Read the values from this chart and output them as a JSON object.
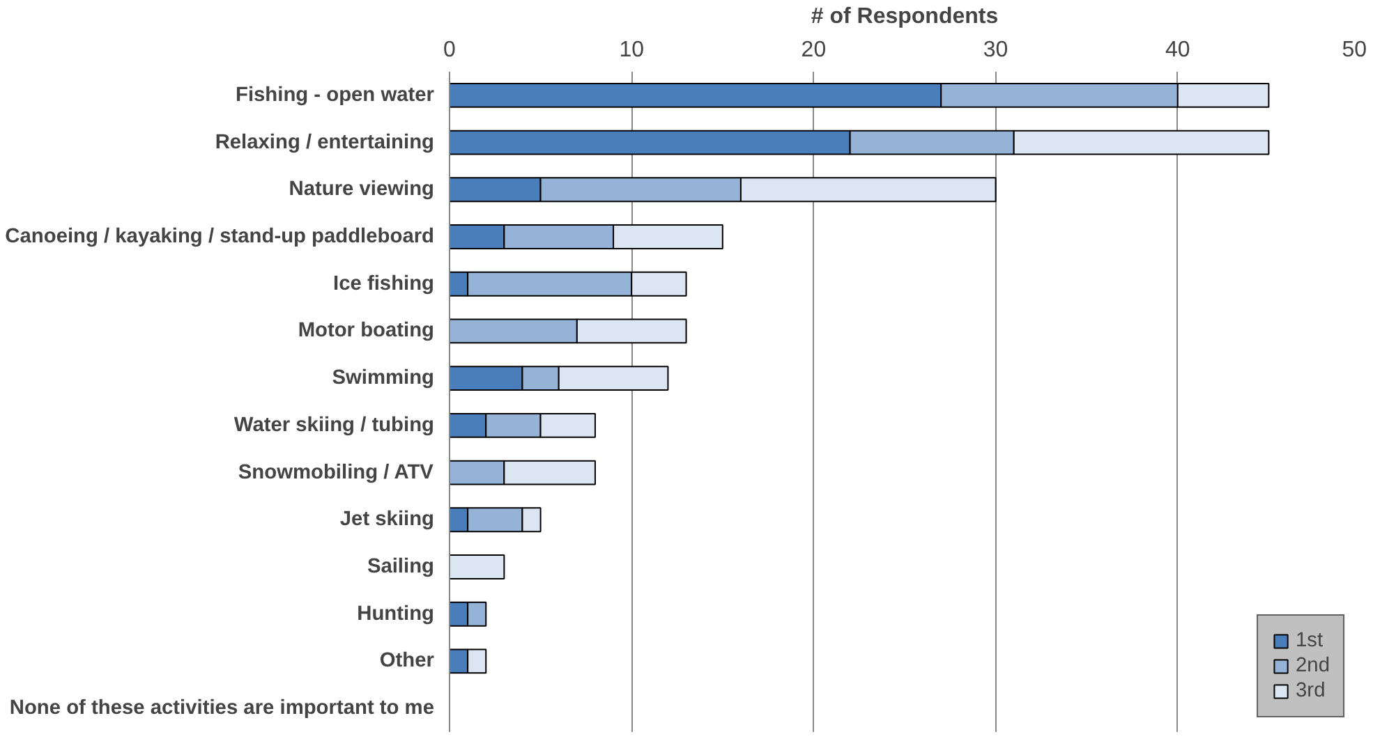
{
  "chart_data": {
    "type": "bar",
    "orientation": "horizontal",
    "stacked": true,
    "xlabel": "# of Respondents",
    "categories": [
      "Fishing - open water",
      "Relaxing / entertaining",
      "Nature viewing",
      "Canoeing / kayaking / stand-up paddleboard",
      "Ice fishing",
      "Motor boating",
      "Swimming",
      "Water skiing / tubing",
      "Snowmobiling / ATV",
      "Jet skiing",
      "Sailing",
      "Hunting",
      "Other",
      "None of these activities are important to me"
    ],
    "series": [
      {
        "name": "1st",
        "color": "#4a7ebb",
        "values": [
          27,
          22,
          5,
          3,
          1,
          0,
          4,
          2,
          0,
          1,
          0,
          1,
          1,
          0
        ]
      },
      {
        "name": "2nd",
        "color": "#95b3d7",
        "values": [
          13,
          9,
          11,
          6,
          9,
          7,
          2,
          3,
          3,
          3,
          0,
          1,
          0,
          0
        ]
      },
      {
        "name": "3rd",
        "color": "#dce6f2",
        "values": [
          5,
          14,
          14,
          6,
          3,
          6,
          6,
          3,
          5,
          1,
          3,
          0,
          1,
          0
        ]
      }
    ],
    "xlim": [
      0,
      50
    ],
    "xticks": [
      0,
      10,
      20,
      30,
      40,
      50
    ],
    "grid": "x",
    "legend": "bottom right"
  }
}
